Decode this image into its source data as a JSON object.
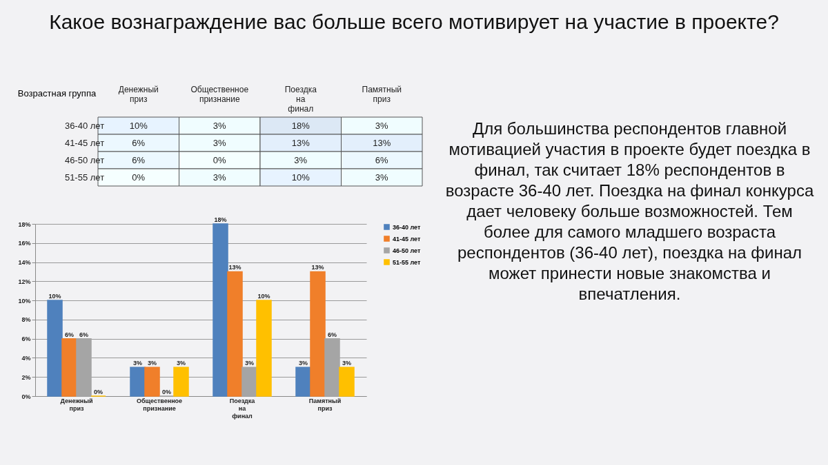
{
  "chart_data": [
    {
      "type": "heatmap",
      "title": "Какое вознаграждение вас больше всего мотивирует на участие в проекте?",
      "ylabel": "Возрастная группа",
      "categories": [
        "Денежный приз",
        "Общественное признание",
        "Поездка на финал",
        "Памятный приз"
      ],
      "y_categories": [
        "36-40 лет",
        "41-45 лет",
        "46-50 лет",
        "51-55 лет"
      ],
      "cells": [
        [
          10,
          3,
          18,
          3
        ],
        [
          6,
          3,
          13,
          13
        ],
        [
          6,
          0,
          3,
          6
        ],
        [
          0,
          3,
          10,
          3
        ]
      ],
      "cell_labels": [
        [
          "10%",
          "3%",
          "18%",
          "3%"
        ],
        [
          "6%",
          "3%",
          "13%",
          "13%"
        ],
        [
          "6%",
          "0%",
          "3%",
          "6%"
        ],
        [
          "0%",
          "3%",
          "10%",
          "3%"
        ]
      ]
    },
    {
      "type": "bar",
      "categories": [
        "Денежный приз",
        "Общественное признание",
        "Поездка на финал",
        "Памятный приз"
      ],
      "series": [
        {
          "name": "36-40 лет",
          "color": "#4f81bd",
          "values": [
            10,
            3,
            18,
            3
          ],
          "value_labels": [
            "10%",
            "3%",
            "18%",
            "3%"
          ]
        },
        {
          "name": "41-45 лет",
          "color": "#f07f2a",
          "values": [
            6,
            3,
            13,
            13
          ],
          "value_labels": [
            "6%",
            "3%",
            "13%",
            "13%"
          ]
        },
        {
          "name": "46-50 лет",
          "color": "#a5a5a5",
          "values": [
            6,
            0,
            3,
            6
          ],
          "value_labels": [
            "6%",
            "0%",
            "3%",
            "6%"
          ]
        },
        {
          "name": "51-55 лет",
          "color": "#ffc000",
          "values": [
            0,
            3,
            10,
            3
          ],
          "value_labels": [
            "0%",
            "3%",
            "10%",
            "3%"
          ]
        }
      ],
      "ylim": [
        0,
        18
      ],
      "yticks": [
        {
          "value": 0,
          "label": "0%"
        },
        {
          "value": 2,
          "label": "2%"
        },
        {
          "value": 4,
          "label": "4%"
        },
        {
          "value": 6,
          "label": "6%"
        },
        {
          "value": 8,
          "label": "8%"
        },
        {
          "value": 10,
          "label": "10%"
        },
        {
          "value": 12,
          "label": "12%"
        },
        {
          "value": 14,
          "label": "14%"
        },
        {
          "value": 16,
          "label": "16%"
        },
        {
          "value": 18,
          "label": "18%"
        }
      ],
      "grid": "y",
      "legend": "right",
      "annotations": [
        "Для большинства респондентов главной мотивацией участия в проекте будет поездка в финал, так считает 18% респондентов в возрасте 36-40 лет. Поездка на финал конкурса дает человеку больше возможностей. Тем более для самого младшего возраста респондентов (36-40 лет), поездка на финал может принести новые знакомства и впечатления."
      ]
    }
  ]
}
